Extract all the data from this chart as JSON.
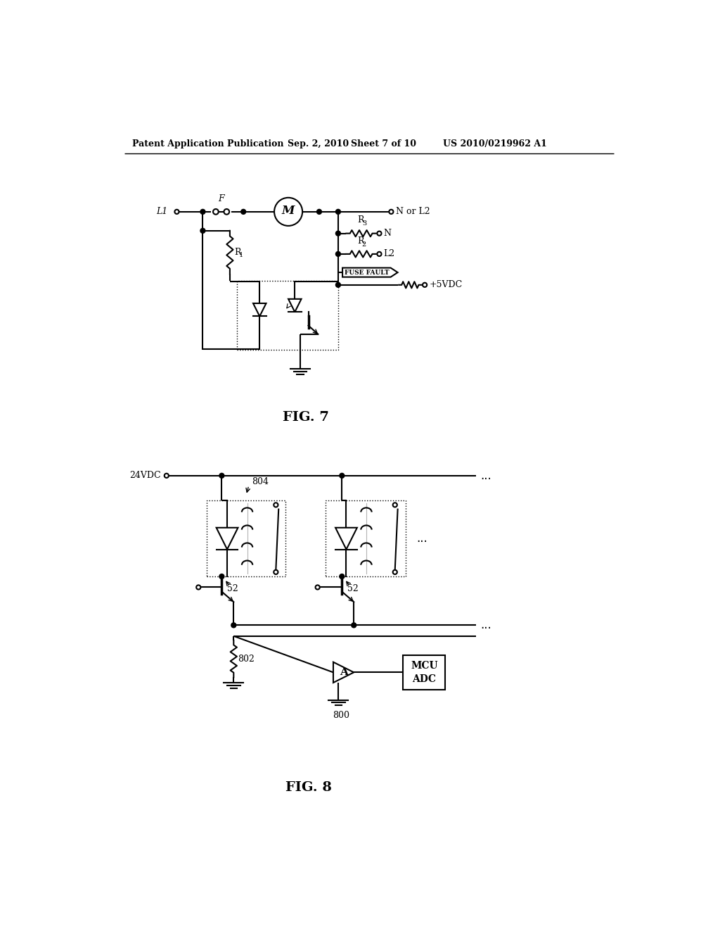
{
  "background_color": "#ffffff",
  "header_text": "Patent Application Publication",
  "header_date": "Sep. 2, 2010",
  "header_sheet": "Sheet 7 of 10",
  "header_patent": "US 2010/0219962 A1",
  "fig7_label": "FIG. 7",
  "fig8_label": "FIG. 8",
  "line_color": "#000000",
  "line_width": 1.5,
  "font_size_header": 9,
  "font_size_fig": 14
}
